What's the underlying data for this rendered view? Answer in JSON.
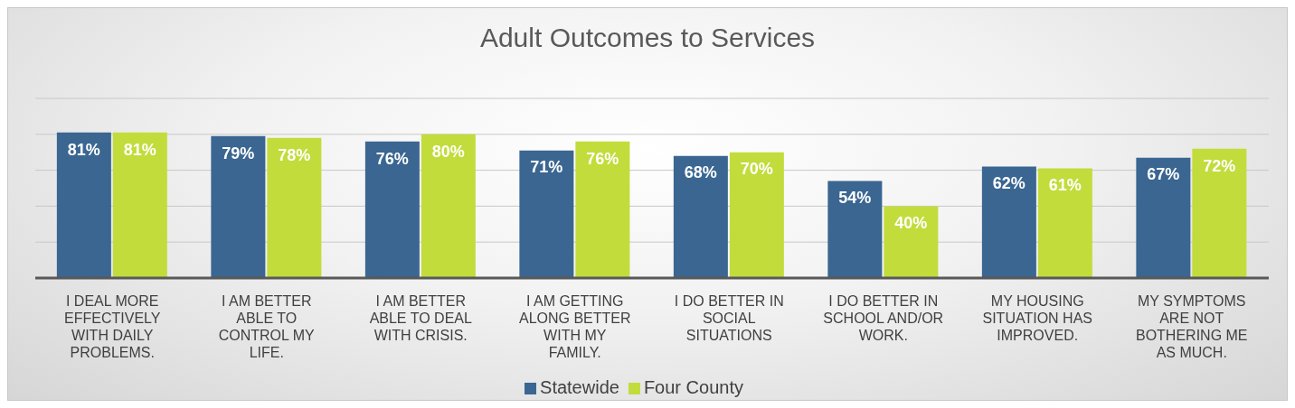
{
  "chart_data": {
    "type": "bar",
    "title": "Adult Outcomes to Services",
    "categories": [
      "I DEAL MORE EFFECTIVELY WITH DAILY PROBLEMS.",
      "I AM BETTER ABLE TO CONTROL MY LIFE.",
      "I AM BETTER ABLE TO DEAL WITH CRISIS.",
      "I AM GETTING ALONG BETTER WITH MY FAMILY.",
      "I DO BETTER IN SOCIAL SITUATIONS",
      "I DO BETTER IN SCHOOL AND/OR WORK.",
      "MY HOUSING SITUATION HAS IMPROVED.",
      "MY SYMPTOMS ARE NOT BOTHERING ME AS MUCH."
    ],
    "series": [
      {
        "name": "Statewide",
        "color": "#3a6691",
        "values": [
          81,
          79,
          76,
          71,
          68,
          54,
          62,
          67
        ],
        "value_labels": [
          "81%",
          "79%",
          "76%",
          "71%",
          "68%",
          "54%",
          "62%",
          "67%"
        ]
      },
      {
        "name": "Four County",
        "color": "#c2dc3c",
        "values": [
          81,
          78,
          80,
          76,
          70,
          40,
          61,
          72
        ],
        "value_labels": [
          "81%",
          "78%",
          "80%",
          "76%",
          "70%",
          "40%",
          "61%",
          "72%"
        ]
      }
    ],
    "ylim": [
      0,
      100
    ],
    "tick_labels": "x",
    "grid": "y",
    "legend": "bottom"
  }
}
